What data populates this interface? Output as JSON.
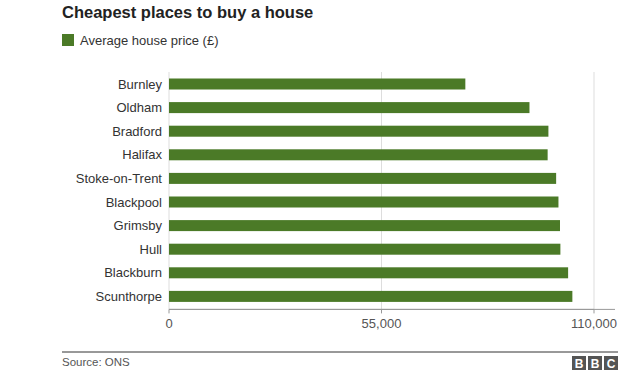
{
  "chart_data": {
    "type": "bar",
    "orientation": "horizontal",
    "title": "Cheapest places to buy a house",
    "categories": [
      "Burnley",
      "Oldham",
      "Bradford",
      "Halifax",
      "Stoke-on-Trent",
      "Blackpool",
      "Grimsby",
      "Hull",
      "Blackburn",
      "Scunthorpe"
    ],
    "series": [
      {
        "name": "Average house price (£)",
        "color": "#4b7a27",
        "values": [
          76700,
          93300,
          98200,
          98000,
          100200,
          100800,
          101200,
          101300,
          103300,
          104400
        ]
      }
    ],
    "xlim": [
      0,
      110000
    ],
    "xticks": [
      0,
      {
        "value": 55000,
        "label": "55,000"
      },
      {
        "value": 110000,
        "label": "110,000"
      }
    ],
    "grid": true,
    "source": "Source: ONS",
    "logo": "BBC"
  }
}
